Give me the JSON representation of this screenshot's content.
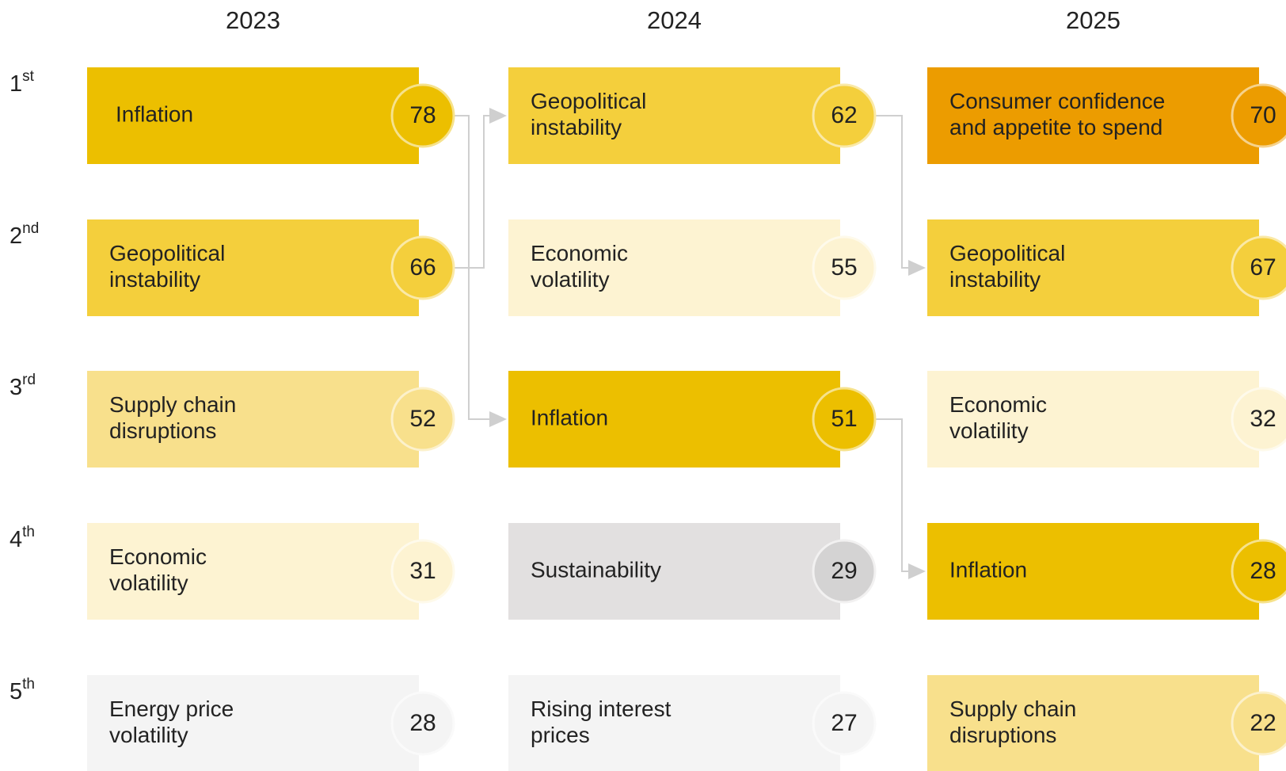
{
  "years": [
    "2023",
    "2024",
    "2025"
  ],
  "ranks": [
    {
      "num": "1",
      "suffix": "st"
    },
    {
      "num": "2",
      "suffix": "nd"
    },
    {
      "num": "3",
      "suffix": "rd"
    },
    {
      "num": "4",
      "suffix": "th"
    },
    {
      "num": "5",
      "suffix": "th"
    }
  ],
  "columns": [
    {
      "items": [
        {
          "lines": [
            "Inflation"
          ],
          "value": 78,
          "color": "#ecbf00"
        },
        {
          "lines": [
            "Geopolitical",
            "instability"
          ],
          "value": 66,
          "color": "#f4cf3c"
        },
        {
          "lines": [
            "Supply chain",
            "disruptions"
          ],
          "value": 52,
          "color": "#f8e08c"
        },
        {
          "lines": [
            "Economic",
            "volatility"
          ],
          "value": 31,
          "color": "#fdf3d2"
        },
        {
          "lines": [
            "Energy price",
            "volatility"
          ],
          "value": 28,
          "color": "#f4f4f4"
        }
      ]
    },
    {
      "items": [
        {
          "lines": [
            "Geopolitical",
            "instability"
          ],
          "value": 62,
          "color": "#f4cf3c"
        },
        {
          "lines": [
            "Economic",
            "volatility"
          ],
          "value": 55,
          "color": "#fdf3d2"
        },
        {
          "lines": [
            "Inflation"
          ],
          "value": 51,
          "color": "#ecbf00"
        },
        {
          "lines": [
            "Sustainability"
          ],
          "value": 29,
          "color": "#e2e0e0"
        },
        {
          "lines": [
            "Rising interest",
            "prices"
          ],
          "value": 27,
          "color": "#f4f4f4"
        }
      ]
    },
    {
      "items": [
        {
          "lines": [
            "Consumer confidence",
            "and appetite to spend"
          ],
          "value": 70,
          "color": "#ec9c00"
        },
        {
          "lines": [
            "Geopolitical",
            "instability"
          ],
          "value": 67,
          "color": "#f4cf3c"
        },
        {
          "lines": [
            "Economic",
            "volatility"
          ],
          "value": 32,
          "color": "#fdf3d2"
        },
        {
          "lines": [
            "Inflation"
          ],
          "value": 28,
          "color": "#ecbf00"
        },
        {
          "lines": [
            "Supply chain",
            "disruptions"
          ],
          "value": 22,
          "color": "#f8e08c"
        }
      ]
    }
  ]
}
